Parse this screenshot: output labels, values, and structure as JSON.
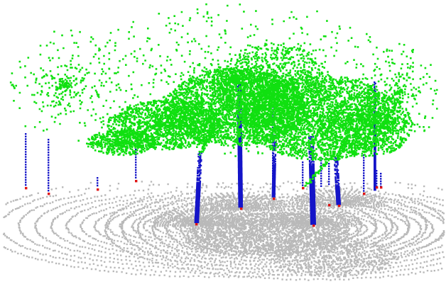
{
  "scene": {
    "kind": "lidar-point-cloud",
    "legend_visible": false,
    "colors": {
      "background": "#ffffff",
      "ground": "#b9b9b9",
      "canopy": "#10e010",
      "stem": "#1414c8",
      "stem_base": "#e01414"
    },
    "classes": [
      "ground",
      "canopy",
      "stem",
      "stem_base"
    ]
  }
}
